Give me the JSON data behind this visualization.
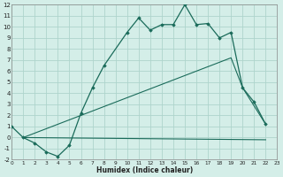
{
  "xlabel": "Humidex (Indice chaleur)",
  "bg_color": "#d4eee8",
  "grid_color": "#aed4cc",
  "line_color": "#1a6b5a",
  "xlim": [
    0,
    23
  ],
  "ylim": [
    -2,
    12
  ],
  "xticks": [
    0,
    1,
    2,
    3,
    4,
    5,
    6,
    7,
    8,
    9,
    10,
    11,
    12,
    13,
    14,
    15,
    16,
    17,
    18,
    19,
    20,
    21,
    22,
    23
  ],
  "yticks": [
    -2,
    -1,
    0,
    1,
    2,
    3,
    4,
    5,
    6,
    7,
    8,
    9,
    10,
    11,
    12
  ],
  "line1_x": [
    0,
    1,
    2,
    3,
    4,
    5,
    6,
    7,
    8,
    10,
    11,
    12,
    13,
    14,
    15,
    16,
    17,
    18,
    19,
    20,
    21,
    22
  ],
  "line1_y": [
    1.0,
    0.0,
    -0.5,
    -1.3,
    -1.7,
    -0.7,
    2.2,
    4.5,
    6.5,
    9.5,
    10.8,
    9.7,
    10.2,
    10.2,
    12.0,
    10.2,
    10.3,
    9.0,
    9.5,
    4.5,
    3.2,
    1.2
  ],
  "line2_x": [
    1,
    22
  ],
  "line2_y": [
    0.0,
    -0.2
  ],
  "line3_x": [
    1,
    19,
    20,
    22
  ],
  "line3_y": [
    0.0,
    7.2,
    4.5,
    1.2
  ],
  "xlabel_fontsize": 5.5,
  "tick_fontsize_x": 4.2,
  "tick_fontsize_y": 5.0
}
